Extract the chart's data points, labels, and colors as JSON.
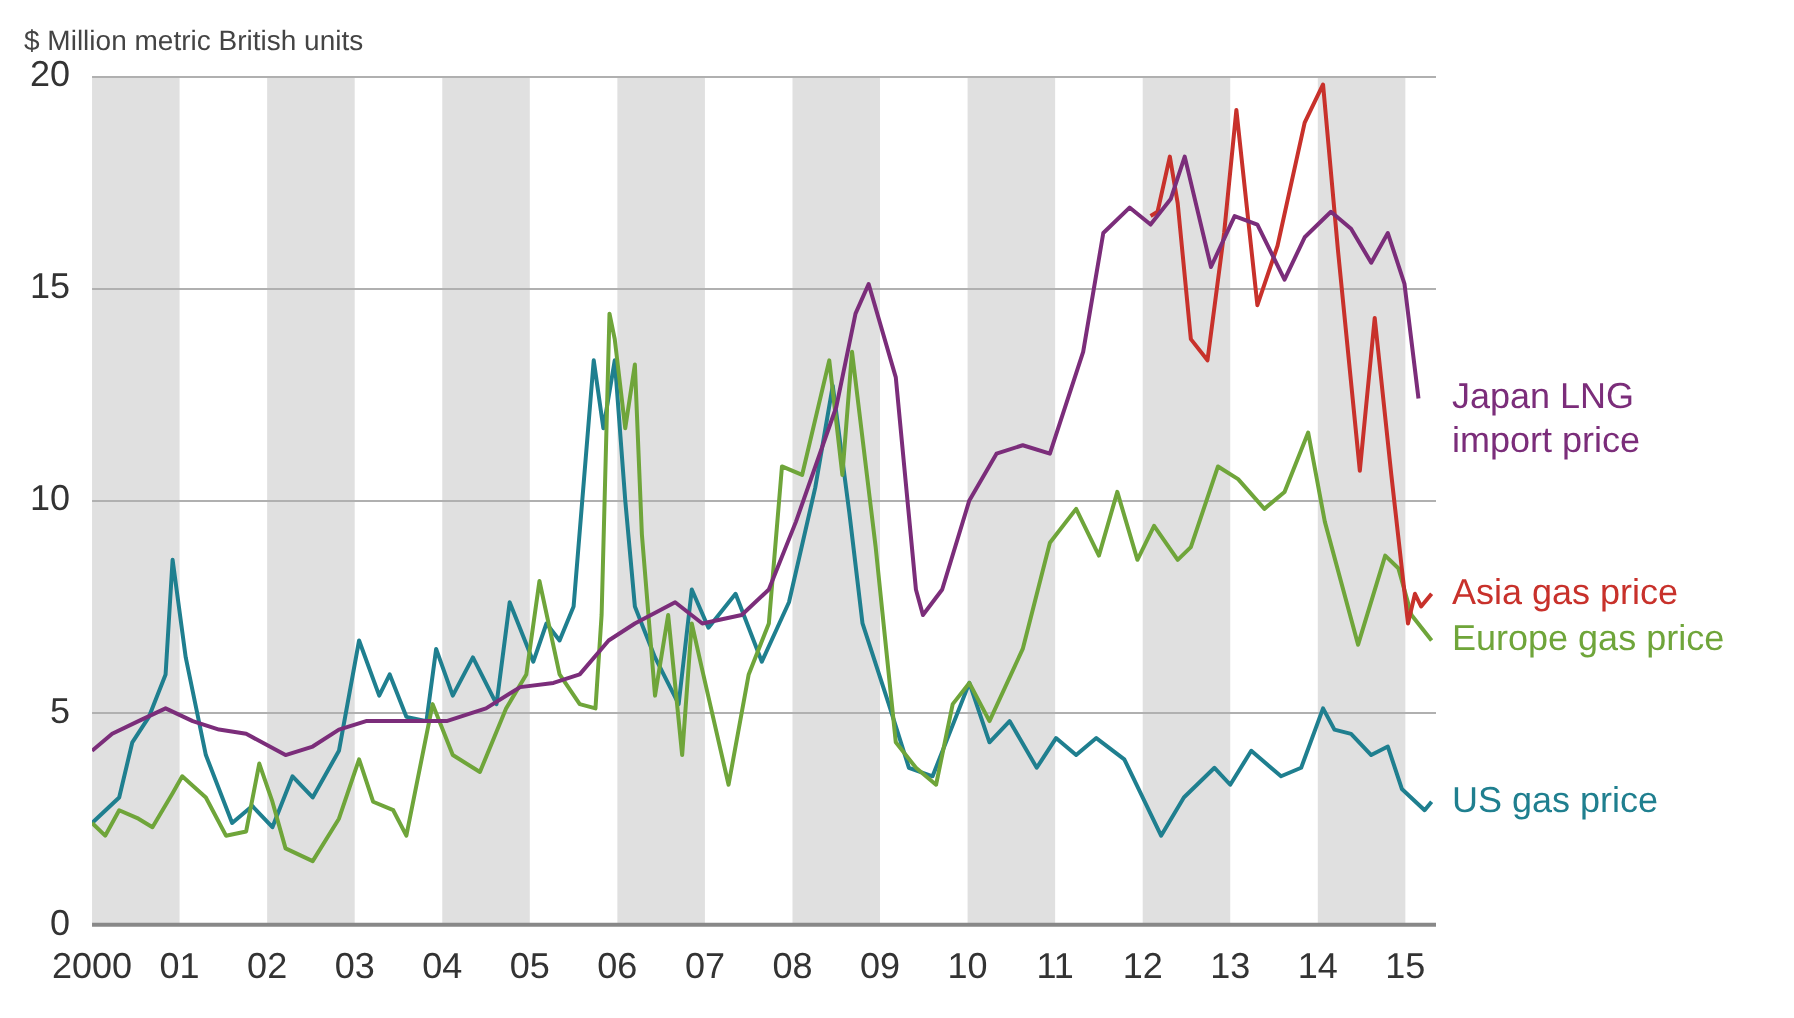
{
  "chart_data": {
    "type": "line",
    "ylabel": "$ Million metric British units",
    "xlim": [
      2000,
      2015.35
    ],
    "ylim": [
      0,
      20
    ],
    "yticks": [
      0,
      5,
      10,
      15,
      20
    ],
    "xticks": [
      {
        "value": 2000,
        "label": "2000"
      },
      {
        "value": 2001,
        "label": "01"
      },
      {
        "value": 2002,
        "label": "02"
      },
      {
        "value": 2003,
        "label": "03"
      },
      {
        "value": 2004,
        "label": "04"
      },
      {
        "value": 2005,
        "label": "05"
      },
      {
        "value": 2006,
        "label": "06"
      },
      {
        "value": 2007,
        "label": "07"
      },
      {
        "value": 2008,
        "label": "08"
      },
      {
        "value": 2009,
        "label": "09"
      },
      {
        "value": 2010,
        "label": "10"
      },
      {
        "value": 2011,
        "label": "11"
      },
      {
        "value": 2012,
        "label": "12"
      },
      {
        "value": 2013,
        "label": "13"
      },
      {
        "value": 2014,
        "label": "14"
      },
      {
        "value": 2015,
        "label": "15"
      }
    ],
    "grid": "y",
    "legend": "right",
    "marker": "none",
    "line_style": "solid",
    "bands": [
      {
        "axis": "x",
        "from": 2000,
        "to": 2001,
        "color": "#e0e0e0"
      },
      {
        "axis": "x",
        "from": 2002,
        "to": 2003,
        "color": "#e0e0e0"
      },
      {
        "axis": "x",
        "from": 2004,
        "to": 2005,
        "color": "#e0e0e0"
      },
      {
        "axis": "x",
        "from": 2006,
        "to": 2007,
        "color": "#e0e0e0"
      },
      {
        "axis": "x",
        "from": 2008,
        "to": 2009,
        "color": "#e0e0e0"
      },
      {
        "axis": "x",
        "from": 2010,
        "to": 2011,
        "color": "#e0e0e0"
      },
      {
        "axis": "x",
        "from": 2012,
        "to": 2013,
        "color": "#e0e0e0"
      },
      {
        "axis": "x",
        "from": 2014,
        "to": 2015,
        "color": "#e0e0e0"
      }
    ],
    "series": [
      {
        "name": "Japan LNG import price",
        "color": "#7b2d7a",
        "x": [
          2000.0,
          2000.23,
          2000.53,
          2000.84,
          2001.15,
          2001.45,
          2001.76,
          2002.21,
          2002.52,
          2002.82,
          2003.13,
          2003.59,
          2004.05,
          2004.5,
          2004.89,
          2005.27,
          2005.57,
          2005.9,
          2006.2,
          2006.66,
          2006.97,
          2007.42,
          2007.73,
          2008.04,
          2008.5,
          2008.72,
          2008.87,
          2009.18,
          2009.41,
          2009.49,
          2009.71,
          2010.02,
          2010.33,
          2010.63,
          2010.94,
          2011.32,
          2011.55,
          2011.85,
          2012.09,
          2012.32,
          2012.48,
          2012.78,
          2013.05,
          2013.31,
          2013.62,
          2013.85,
          2014.15,
          2014.38,
          2014.61,
          2014.8,
          2014.99,
          2015.15
        ],
        "values": [
          4.1,
          4.5,
          4.8,
          5.1,
          4.8,
          4.6,
          4.5,
          4.0,
          4.2,
          4.6,
          4.8,
          4.8,
          4.8,
          5.1,
          5.6,
          5.7,
          5.9,
          6.7,
          7.1,
          7.6,
          7.1,
          7.3,
          7.9,
          9.5,
          12.2,
          14.4,
          15.1,
          12.9,
          7.9,
          7.3,
          7.9,
          10.0,
          11.1,
          11.3,
          11.1,
          13.5,
          16.3,
          16.9,
          16.5,
          17.1,
          18.1,
          15.5,
          16.7,
          16.5,
          15.2,
          16.2,
          16.8,
          16.4,
          15.6,
          16.3,
          15.1,
          12.4
        ]
      },
      {
        "name": "Asia gas price",
        "color": "#c8312b",
        "x": [
          2012.09,
          2012.17,
          2012.31,
          2012.4,
          2012.55,
          2012.74,
          2012.93,
          2013.07,
          2013.31,
          2013.54,
          2013.85,
          2014.06,
          2014.23,
          2014.48,
          2014.65,
          2014.84,
          2015.03,
          2015.11,
          2015.18,
          2015.3
        ],
        "values": [
          16.7,
          16.8,
          18.1,
          17.0,
          13.8,
          13.3,
          16.3,
          19.2,
          14.6,
          16.0,
          18.9,
          19.8,
          15.9,
          10.7,
          14.3,
          10.6,
          7.1,
          7.8,
          7.5,
          7.8
        ]
      },
      {
        "name": "Europe gas price",
        "color": "#6fa53a",
        "x": [
          2000.0,
          2000.15,
          2000.31,
          2000.53,
          2000.69,
          2000.92,
          2001.03,
          2001.3,
          2001.53,
          2001.76,
          2001.91,
          2002.06,
          2002.21,
          2002.52,
          2002.82,
          2003.05,
          2003.21,
          2003.44,
          2003.59,
          2003.89,
          2004.12,
          2004.43,
          2004.73,
          2004.96,
          2005.11,
          2005.34,
          2005.57,
          2005.75,
          2005.82,
          2005.91,
          2005.97,
          2006.09,
          2006.2,
          2006.28,
          2006.43,
          2006.58,
          2006.74,
          2006.85,
          2006.97,
          2007.27,
          2007.5,
          2007.73,
          2007.88,
          2008.11,
          2008.42,
          2008.57,
          2008.68,
          2008.95,
          2009.18,
          2009.41,
          2009.64,
          2009.83,
          2010.02,
          2010.25,
          2010.63,
          2010.94,
          2011.24,
          2011.5,
          2011.71,
          2011.94,
          2012.13,
          2012.4,
          2012.55,
          2012.86,
          2013.09,
          2013.39,
          2013.62,
          2013.89,
          2014.08,
          2014.46,
          2014.77,
          2014.92,
          2015.07,
          2015.3
        ],
        "values": [
          2.4,
          2.1,
          2.7,
          2.5,
          2.3,
          3.1,
          3.5,
          3.0,
          2.1,
          2.2,
          3.8,
          2.9,
          1.8,
          1.5,
          2.5,
          3.9,
          2.9,
          2.7,
          2.1,
          5.2,
          4.0,
          3.6,
          5.1,
          5.9,
          8.1,
          5.9,
          5.2,
          5.1,
          7.3,
          14.4,
          13.8,
          11.7,
          13.2,
          9.2,
          5.4,
          7.3,
          4.0,
          7.1,
          6.0,
          3.3,
          5.9,
          7.1,
          10.8,
          10.6,
          13.3,
          10.6,
          13.5,
          8.9,
          4.3,
          3.7,
          3.3,
          5.2,
          5.7,
          4.8,
          6.5,
          9.0,
          9.8,
          8.7,
          10.2,
          8.6,
          9.4,
          8.6,
          8.9,
          10.8,
          10.5,
          9.8,
          10.2,
          11.6,
          9.5,
          6.6,
          8.7,
          8.4,
          7.3,
          6.7
        ]
      },
      {
        "name": "US gas price",
        "color": "#1f7f8f",
        "x": [
          2000.0,
          2000.31,
          2000.46,
          2000.65,
          2000.84,
          2000.92,
          2001.07,
          2001.3,
          2001.6,
          2001.83,
          2002.06,
          2002.29,
          2002.52,
          2002.82,
          2003.05,
          2003.28,
          2003.4,
          2003.59,
          2003.82,
          2003.93,
          2004.12,
          2004.35,
          2004.62,
          2004.77,
          2005.04,
          2005.19,
          2005.34,
          2005.5,
          2005.73,
          2005.84,
          2005.97,
          2006.09,
          2006.2,
          2006.43,
          2006.7,
          2006.85,
          2007.04,
          2007.35,
          2007.65,
          2007.96,
          2008.26,
          2008.46,
          2008.65,
          2008.8,
          2009.1,
          2009.33,
          2009.6,
          2010.02,
          2010.25,
          2010.48,
          2010.79,
          2011.01,
          2011.24,
          2011.47,
          2011.79,
          2012.21,
          2012.47,
          2012.82,
          2013.0,
          2013.24,
          2013.58,
          2013.81,
          2014.06,
          2014.19,
          2014.38,
          2014.61,
          2014.8,
          2014.96,
          2015.22,
          2015.3
        ],
        "values": [
          2.4,
          3.0,
          4.3,
          4.9,
          5.9,
          8.6,
          6.3,
          4.0,
          2.4,
          2.8,
          2.3,
          3.5,
          3.0,
          4.1,
          6.7,
          5.4,
          5.9,
          4.9,
          4.8,
          6.5,
          5.4,
          6.3,
          5.2,
          7.6,
          6.2,
          7.1,
          6.7,
          7.5,
          13.3,
          11.7,
          13.3,
          10.0,
          7.5,
          6.3,
          5.2,
          7.9,
          7.0,
          7.8,
          6.2,
          7.6,
          10.3,
          12.7,
          9.7,
          7.1,
          5.2,
          3.7,
          3.5,
          5.7,
          4.3,
          4.8,
          3.7,
          4.4,
          4.0,
          4.4,
          3.9,
          2.1,
          3.0,
          3.7,
          3.3,
          4.1,
          3.5,
          3.7,
          5.1,
          4.6,
          4.5,
          4.0,
          4.2,
          3.2,
          2.7,
          2.9
        ]
      }
    ]
  }
}
